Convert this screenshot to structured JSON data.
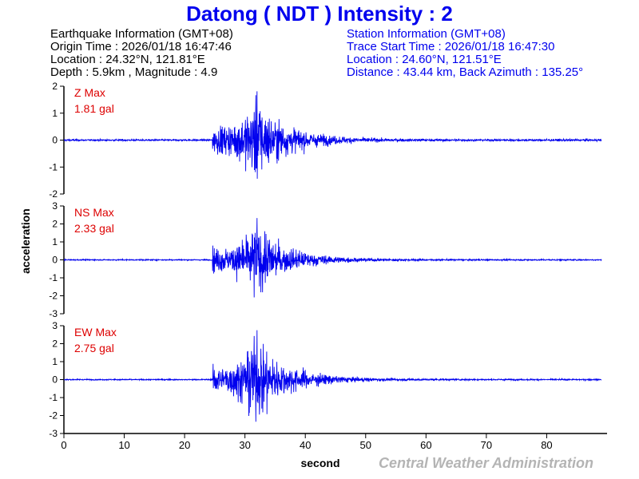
{
  "title": "Datong ( NDT ) Intensity : 2",
  "earthquake_info": {
    "header": "Earthquake Information  (GMT+08)",
    "origin_time": "Origin Time : 2026/01/18 16:47:46",
    "location": "Location : 24.32°N, 121.81°E",
    "depth_magnitude": "Depth : 5.9km , Magnitude : 4.9"
  },
  "station_info": {
    "header": "Station Information  (GMT+08)",
    "trace_start": "Trace Start Time : 2026/01/18 16:47:30",
    "location": "Location : 24.60°N, 121.51°E",
    "distance": "Distance : 43.44 km, Back Azimuth : 135.25°"
  },
  "credit": "Central Weather Administration",
  "colors": {
    "trace": "#0000ee",
    "title": "#0000ee",
    "max_label": "#dd0000",
    "axis": "#000000",
    "credit": "#b4b4b4"
  },
  "chart_data": {
    "type": "line",
    "xlabel": "second",
    "ylabel": "acceleration",
    "xlim": [
      0,
      90
    ],
    "xticks": [
      0,
      10,
      20,
      30,
      40,
      50,
      60,
      70,
      80
    ],
    "p_arrival_s": 24.6,
    "s_peak_s": 32,
    "duration_s": 90,
    "channels": [
      {
        "name": "Z",
        "max_label": "Z Max",
        "max_value": "1.81 gal",
        "peak": 1.81,
        "ylim": [
          -2,
          2
        ],
        "yticks": [
          -2,
          -1,
          0,
          1,
          2
        ]
      },
      {
        "name": "NS",
        "max_label": "NS Max",
        "max_value": "2.33 gal",
        "peak": 2.33,
        "ylim": [
          -3,
          3
        ],
        "yticks": [
          -3,
          -2,
          -1,
          0,
          1,
          2,
          3
        ]
      },
      {
        "name": "EW",
        "max_label": "EW Max",
        "max_value": "2.75 gal",
        "peak": 2.75,
        "ylim": [
          -3,
          3
        ],
        "yticks": [
          -3,
          -2,
          -1,
          0,
          1,
          2,
          3
        ]
      }
    ]
  }
}
